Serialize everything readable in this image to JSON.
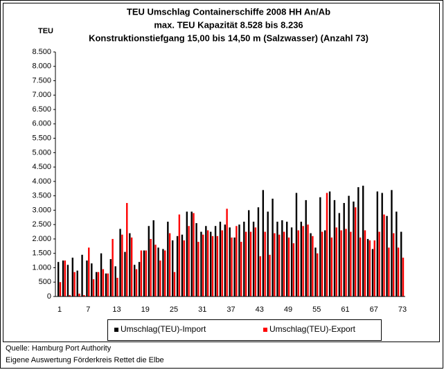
{
  "chart_data": {
    "type": "bar",
    "title": [
      "TEU Umschlag Containerschiffe 2008 HH An/Ab",
      "max. TEU Kapazität 8.528 bis 8.236",
      "Konstruktionstiefgang 15,00 bis 14,50 m (Salzwasser)  (Anzahl 73)"
    ],
    "y_label": "TEU",
    "categories": [
      "1",
      null,
      null,
      null,
      null,
      null,
      "7",
      null,
      null,
      null,
      null,
      null,
      "13",
      null,
      null,
      null,
      null,
      null,
      "19",
      null,
      null,
      null,
      null,
      null,
      "25",
      null,
      null,
      null,
      null,
      null,
      "31",
      null,
      null,
      null,
      null,
      null,
      "37",
      null,
      null,
      null,
      null,
      null,
      "43",
      null,
      null,
      null,
      null,
      null,
      "49",
      null,
      null,
      null,
      null,
      null,
      "55",
      null,
      null,
      null,
      null,
      null,
      "61",
      null,
      null,
      null,
      null,
      null,
      "67",
      null,
      null,
      null,
      null,
      null,
      "73"
    ],
    "series": [
      {
        "name": "Umschlag(TEU)-Import",
        "color": "#000000",
        "values": [
          1200,
          1250,
          1100,
          1350,
          900,
          1450,
          1250,
          1150,
          850,
          1500,
          800,
          1300,
          1050,
          2350,
          1550,
          2200,
          1100,
          1200,
          1600,
          2450,
          2650,
          1700,
          1650,
          2600,
          1950,
          2100,
          2150,
          2950,
          2950,
          2550,
          2250,
          2450,
          2250,
          2450,
          2600,
          2500,
          2400,
          2050,
          2500,
          2600,
          3000,
          2600,
          3100,
          3700,
          2950,
          3400,
          2600,
          2650,
          2600,
          2400,
          3600,
          2600,
          3350,
          2200,
          1700,
          3450,
          2300,
          3650,
          3350,
          2900,
          3250,
          3500,
          3300,
          3800,
          3850,
          2000,
          1650,
          3650,
          3600,
          2800,
          3700,
          2950,
          2250
        ]
      },
      {
        "name": "Umschlag(TEU)-Export",
        "color": "#ff0000",
        "values": [
          500,
          1250,
          50,
          850,
          100,
          50,
          1700,
          600,
          850,
          950,
          800,
          2000,
          650,
          2150,
          3250,
          2050,
          950,
          1600,
          1600,
          2000,
          1800,
          1250,
          1600,
          2200,
          850,
          2850,
          1950,
          2450,
          2900,
          1900,
          2150,
          2300,
          2100,
          2100,
          2300,
          3050,
          2050,
          2450,
          1900,
          2250,
          2250,
          2400,
          1400,
          2250,
          1450,
          2200,
          2150,
          2250,
          2050,
          1850,
          2300,
          2450,
          2500,
          2100,
          1500,
          2250,
          3600,
          2050,
          2400,
          2300,
          2350,
          2250,
          3100,
          2050,
          2300,
          1950,
          1950,
          2250,
          2850,
          1700,
          2200,
          1700,
          1350
        ]
      }
    ],
    "ylim": [
      0,
      8500
    ],
    "yticks": [
      0,
      500,
      {
        "value": 1000,
        "label": "1.000"
      },
      {
        "value": 1500,
        "label": "1.500"
      },
      {
        "value": 2000,
        "label": "2.000"
      },
      {
        "value": 2500,
        "label": "2.500"
      },
      {
        "value": 3000,
        "label": "3.000"
      },
      {
        "value": 3500,
        "label": "3.500"
      },
      {
        "value": 4000,
        "label": "4.000"
      },
      {
        "value": 4500,
        "label": "4.500"
      },
      {
        "value": 5000,
        "label": "5.000"
      },
      {
        "value": 5500,
        "label": "5.500"
      },
      {
        "value": 6000,
        "label": "6.000"
      },
      {
        "value": 6500,
        "label": "6.500"
      },
      {
        "value": 7000,
        "label": "7.000"
      },
      {
        "value": 7500,
        "label": "7.500"
      },
      {
        "value": 8000,
        "label": "8.000"
      },
      {
        "value": 8500,
        "label": "8.500"
      }
    ],
    "grid": false,
    "source": "Quelle: Hamburg Port Authority",
    "credit": "Eigene Auswertung Förderkreis Rettet die Elbe"
  }
}
